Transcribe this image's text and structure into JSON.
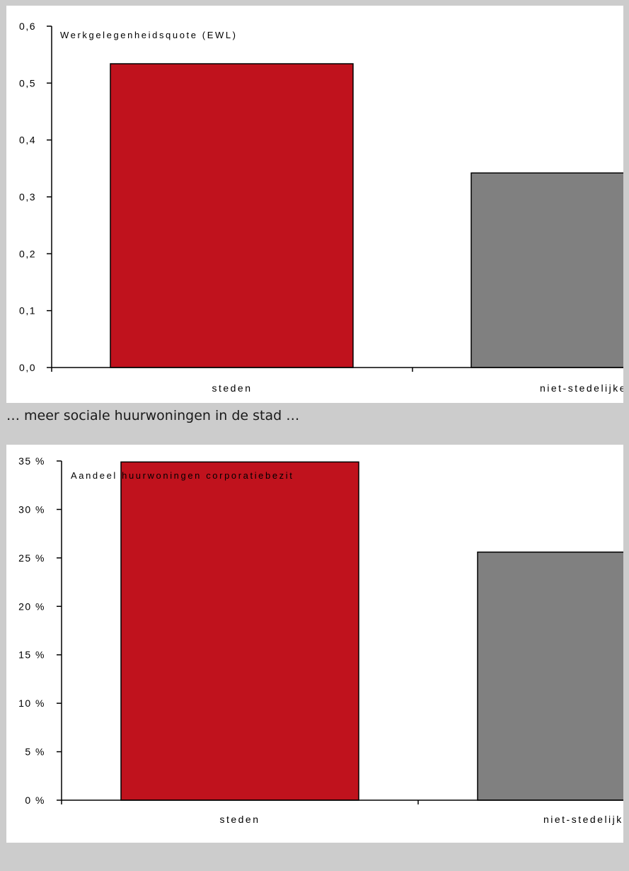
{
  "caption": "… meer sociale huurwoningen in de stad …",
  "chart_data": [
    {
      "type": "bar",
      "title": "Werkgelegenheidsquote (EWL)",
      "categories": [
        "steden",
        "niet-stedelijke ge"
      ],
      "values": [
        0.534,
        0.342
      ],
      "colors": [
        "#c0121d",
        "#808080"
      ],
      "ylim": [
        0,
        0.6
      ],
      "yticks": [
        0,
        0.1,
        0.2,
        0.3,
        0.4,
        0.5,
        0.6
      ],
      "ytick_labels": [
        "0,0",
        "0,1",
        "0,2",
        "0,3",
        "0,4",
        "0,5",
        "0,6"
      ],
      "xlabel": "",
      "ylabel": ""
    },
    {
      "type": "bar",
      "title": "Aandeel huurwoningen corporatiebezit",
      "categories": [
        "steden",
        "niet-stedelijke ge"
      ],
      "values": [
        0.349,
        0.256
      ],
      "colors": [
        "#c0121d",
        "#808080"
      ],
      "ylim": [
        0,
        0.35
      ],
      "yticks": [
        0,
        0.05,
        0.1,
        0.15,
        0.2,
        0.25,
        0.3,
        0.35
      ],
      "ytick_labels": [
        "0 %",
        "5 %",
        "10 %",
        "15 %",
        "20 %",
        "25 %",
        "30 %",
        "35 %"
      ],
      "xlabel": "",
      "ylabel": ""
    }
  ]
}
